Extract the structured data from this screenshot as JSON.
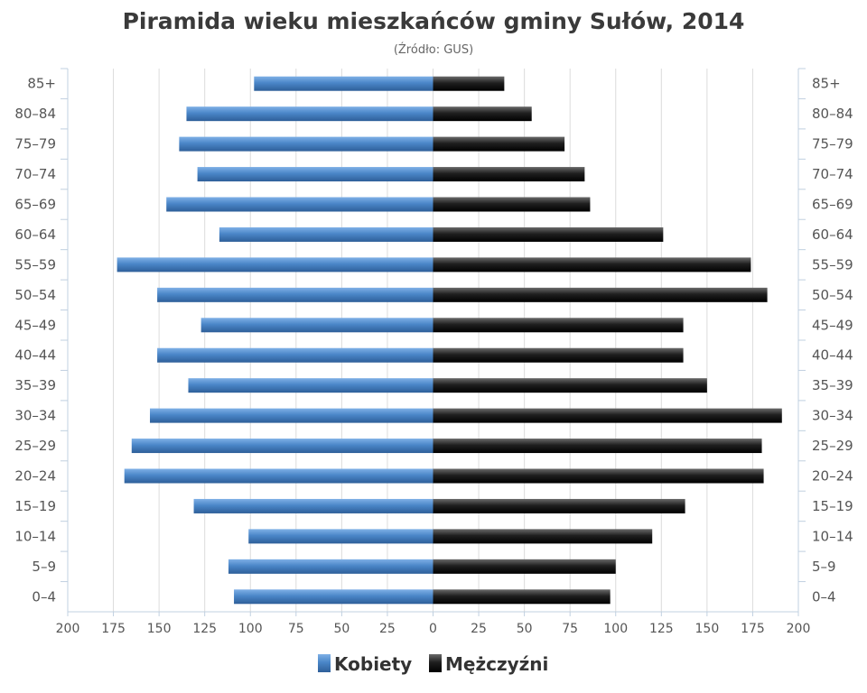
{
  "chart_data": {
    "type": "bar",
    "orientation": "horizontal-pyramid",
    "title": "Piramida wieku mieszkańców gminy Sułów, 2014",
    "subtitle": "(Źródło: GUS)",
    "categories": [
      "85+",
      "80–84",
      "75–79",
      "70–74",
      "65–69",
      "60–64",
      "55–59",
      "50–54",
      "45–49",
      "40–44",
      "35–39",
      "30–34",
      "25–29",
      "20–24",
      "15–19",
      "10–14",
      "5–9",
      "0–4"
    ],
    "series": [
      {
        "name": "Kobiety",
        "color": "#4a86c8",
        "values": [
          98,
          135,
          139,
          129,
          146,
          117,
          173,
          151,
          127,
          151,
          134,
          155,
          165,
          169,
          131,
          101,
          112,
          109
        ]
      },
      {
        "name": "Mężczyźni",
        "color": "#1a1a1a",
        "values": [
          39,
          54,
          72,
          83,
          86,
          126,
          174,
          183,
          137,
          137,
          150,
          191,
          180,
          181,
          138,
          120,
          100,
          97
        ]
      }
    ],
    "xticks": [
      "200",
      "175",
      "150",
      "125",
      "100",
      "75",
      "50",
      "25",
      "0",
      "25",
      "50",
      "75",
      "100",
      "125",
      "150",
      "175",
      "200"
    ],
    "xlim": [
      -200,
      200
    ],
    "grid": true,
    "legend": "bottom-center"
  }
}
